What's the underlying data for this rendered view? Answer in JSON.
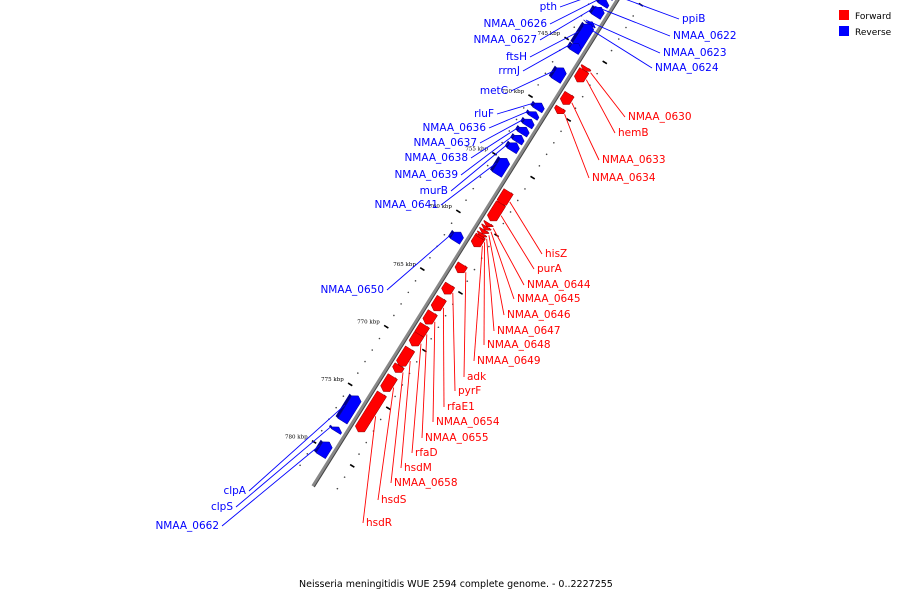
{
  "caption": "Neisseria meningitidis WUE 2594 complete genome. - 0..2227255",
  "legend": [
    {
      "label": "Forward",
      "color": "#ff0000"
    },
    {
      "label": "Reverse",
      "color": "#0000ff"
    }
  ],
  "colors": {
    "forward": "#ff0000",
    "reverse": "#0000ff",
    "backbone": "#888888"
  },
  "ticks": [
    {
      "kbp": 740,
      "label": "740 kbp"
    },
    {
      "kbp": 745,
      "label": "745 kbp"
    },
    {
      "kbp": 750,
      "label": "750 kbp"
    },
    {
      "kbp": 755,
      "label": "755 kbp"
    },
    {
      "kbp": 760,
      "label": "760 kbp"
    },
    {
      "kbp": 765,
      "label": "765 kbp"
    },
    {
      "kbp": 770,
      "label": "770 kbp"
    },
    {
      "kbp": 775,
      "label": "775 kbp"
    },
    {
      "kbp": 780,
      "label": "780 kbp"
    }
  ],
  "genes": [
    {
      "name": "pth",
      "strand": "reverse",
      "kbp": 740.6
    },
    {
      "name": "ppiB",
      "strand": "reverse",
      "kbp": 740.6
    },
    {
      "name": "NMAA_0622",
      "strand": "reverse",
      "kbp": 741.9
    },
    {
      "name": "NMAA_0623",
      "strand": "reverse",
      "kbp": 743.1
    },
    {
      "name": "NMAA_0624",
      "strand": "reverse",
      "kbp": 743.5
    },
    {
      "name": "NMAA_0626",
      "strand": "reverse",
      "kbp": 741.3
    },
    {
      "name": "NMAA_0627",
      "strand": "reverse",
      "kbp": 742.1
    },
    {
      "name": "ftsH",
      "strand": "reverse",
      "kbp": 744.1
    },
    {
      "name": "rrmJ",
      "strand": "reverse",
      "kbp": 745.2
    },
    {
      "name": "metC",
      "strand": "reverse",
      "kbp": 747.5
    },
    {
      "name": "NMAA_0630",
      "strand": "forward",
      "kbp": 746.2
    },
    {
      "name": "hemB",
      "strand": "forward",
      "kbp": 746.8
    },
    {
      "name": "NMAA_0633",
      "strand": "forward",
      "kbp": 748.8
    },
    {
      "name": "NMAA_0634",
      "strand": "forward",
      "kbp": 749.8
    },
    {
      "name": "rluF",
      "strand": "reverse",
      "kbp": 750.3
    },
    {
      "name": "NMAA_0636",
      "strand": "reverse",
      "kbp": 751.0
    },
    {
      "name": "NMAA_0637",
      "strand": "reverse",
      "kbp": 751.7
    },
    {
      "name": "NMAA_0638",
      "strand": "reverse",
      "kbp": 752.4
    },
    {
      "name": "NMAA_0639",
      "strand": "reverse",
      "kbp": 753.1
    },
    {
      "name": "murB",
      "strand": "reverse",
      "kbp": 753.8
    },
    {
      "name": "NMAA_0641",
      "strand": "reverse",
      "kbp": 755.5
    },
    {
      "name": "hisZ",
      "strand": "forward",
      "kbp": 757.4
    },
    {
      "name": "purA",
      "strand": "forward",
      "kbp": 758.6
    },
    {
      "name": "NMAA_0644",
      "strand": "forward",
      "kbp": 759.7
    },
    {
      "name": "NMAA_0645",
      "strand": "forward",
      "kbp": 760.0
    },
    {
      "name": "NMAA_0646",
      "strand": "forward",
      "kbp": 760.3
    },
    {
      "name": "NMAA_0647",
      "strand": "forward",
      "kbp": 760.6
    },
    {
      "name": "NMAA_0648",
      "strand": "forward",
      "kbp": 760.9
    },
    {
      "name": "NMAA_0649",
      "strand": "forward",
      "kbp": 761.2
    },
    {
      "name": "NMAA_0650",
      "strand": "reverse",
      "kbp": 761.6
    },
    {
      "name": "adk",
      "strand": "forward",
      "kbp": 763.5
    },
    {
      "name": "pyrF",
      "strand": "forward",
      "kbp": 765.3
    },
    {
      "name": "rfaE1",
      "strand": "forward",
      "kbp": 766.6
    },
    {
      "name": "NMAA_0654",
      "strand": "forward",
      "kbp": 767.8
    },
    {
      "name": "NMAA_0655",
      "strand": "forward",
      "kbp": 768.9
    },
    {
      "name": "rfaD",
      "strand": "forward",
      "kbp": 769.7
    },
    {
      "name": "hsdM",
      "strand": "forward",
      "kbp": 771.2
    },
    {
      "name": "NMAA_0658",
      "strand": "forward",
      "kbp": 772.2
    },
    {
      "name": "hsdS",
      "strand": "forward",
      "kbp": 773.5
    },
    {
      "name": "hsdR",
      "strand": "forward",
      "kbp": 776.0
    },
    {
      "name": "clpA",
      "strand": "reverse",
      "kbp": 776.5
    },
    {
      "name": "clpS",
      "strand": "reverse",
      "kbp": 778.3
    },
    {
      "name": "NMAA_0662",
      "strand": "reverse",
      "kbp": 780.0
    }
  ]
}
